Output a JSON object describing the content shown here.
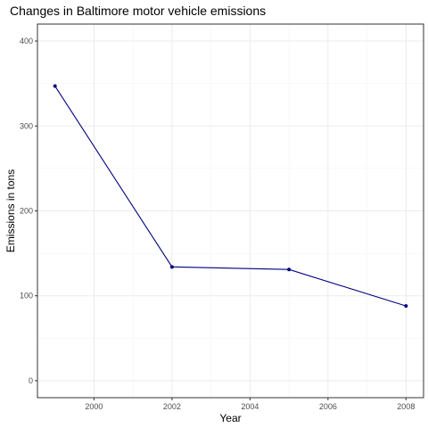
{
  "chart_data": {
    "type": "line",
    "title": "Changes in Baltimore motor vehicle emissions",
    "xlabel": "Year",
    "ylabel": "Emissions in tons",
    "x": [
      1999,
      2002,
      2005,
      2008
    ],
    "series": [
      {
        "values": [
          347,
          134,
          131,
          88
        ],
        "color": "#000080"
      }
    ],
    "xlim": [
      1998.55,
      2008.45
    ],
    "ylim": [
      -20,
      420
    ],
    "xticks": [
      2000,
      2002,
      2004,
      2006,
      2008
    ],
    "yticks": [
      0,
      100,
      200,
      300,
      400
    ],
    "grid": true,
    "legend": "none"
  }
}
